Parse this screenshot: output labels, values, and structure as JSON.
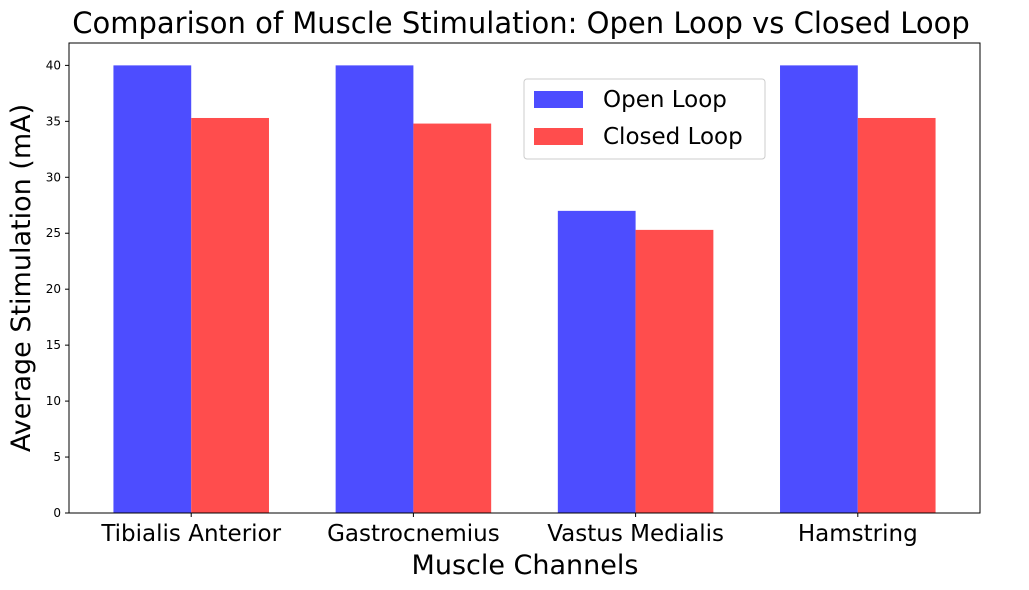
{
  "chart_data": {
    "type": "bar",
    "title": "Comparison of Muscle Stimulation: Open Loop vs Closed Loop",
    "xlabel": "Muscle Channels",
    "ylabel": "Average Stimulation (mA)",
    "categories": [
      "Tibialis Anterior",
      "Gastrocnemius",
      "Vastus Medialis",
      "Hamstring"
    ],
    "series": [
      {
        "name": "Open Loop",
        "color": "#4d4dff",
        "values": [
          40.0,
          40.0,
          27.0,
          40.0
        ]
      },
      {
        "name": "Closed Loop",
        "color": "#ff4d4d",
        "values": [
          35.3,
          34.8,
          25.3,
          35.3
        ]
      }
    ],
    "yticks": [
      0,
      5,
      10,
      15,
      20,
      25,
      30,
      35,
      40
    ],
    "ylim": [
      0,
      42
    ],
    "grid": false,
    "legend_position": "top-right"
  }
}
